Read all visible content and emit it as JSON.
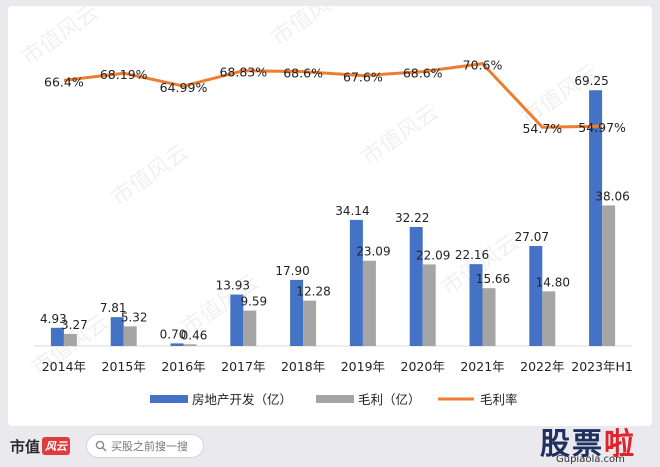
{
  "chart_data": {
    "type": "bar",
    "categories": [
      "2014年",
      "2015年",
      "2016年",
      "2017年",
      "2018年",
      "2019年",
      "2020年",
      "2021年",
      "2022年",
      "2023年H1"
    ],
    "series": [
      {
        "name": "房地产开发（亿）",
        "kind": "bar",
        "color": "#4472c4",
        "values": [
          4.93,
          7.81,
          0.7,
          13.93,
          17.9,
          34.14,
          32.22,
          22.16,
          27.07,
          69.25
        ],
        "labels": [
          "4.93",
          "7.81",
          "0.70",
          "13.93",
          "17.90",
          "34.14",
          "32.22",
          "22.16",
          "27.07",
          "69.25"
        ]
      },
      {
        "name": "毛利（亿）",
        "kind": "bar",
        "color": "#a5a5a5",
        "values": [
          3.27,
          5.32,
          0.46,
          9.59,
          12.28,
          23.09,
          22.09,
          15.66,
          14.8,
          38.06
        ],
        "labels": [
          "3.27",
          "5.32",
          "0.46",
          "9.59",
          "12.28",
          "23.09",
          "22.09",
          "15.66",
          "14.80",
          "38.06"
        ]
      },
      {
        "name": "毛利率",
        "kind": "line",
        "color": "#ed7d31",
        "values": [
          66.4,
          68.19,
          64.99,
          68.83,
          68.6,
          67.6,
          68.6,
          70.6,
          54.7,
          54.97
        ],
        "labels": [
          "66.4%",
          "68.19%",
          "64.99%",
          "68.83%",
          "68.6%",
          "67.6%",
          "68.6%",
          "70.6%",
          "54.7%",
          "54.97%"
        ]
      }
    ],
    "ylim_bars": [
      0,
      75
    ],
    "ylim_line": [
      0,
      80
    ],
    "legend": "bottom",
    "grid": false
  },
  "watermark": "市值风云",
  "footer": {
    "brand": "市值",
    "brand_badge": "风云",
    "search_placeholder": "买股之前搜一搜",
    "logo_chars": [
      "股",
      "票",
      "啦"
    ],
    "site": "Gupiaola.com"
  }
}
